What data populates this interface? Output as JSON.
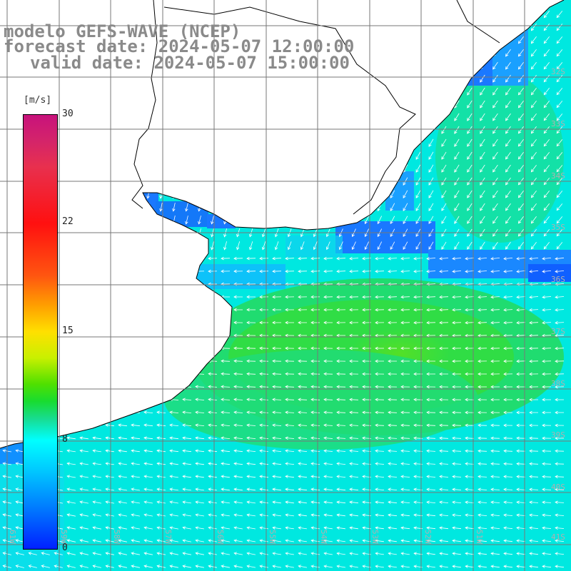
{
  "title": {
    "line1": "modelo GEFS-WAVE (NCEP)",
    "line2": "forecast date: 2024-05-07 12:00:00",
    "line3": "valid date: 2024-05-07 15:00:00"
  },
  "colorbar": {
    "unit": "[m/s]",
    "ticks": [
      "30",
      "22",
      "15",
      "8",
      "0"
    ],
    "colors": [
      "#c8127c",
      "#ff1010",
      "#ffa000",
      "#ffe000",
      "#18dc30",
      "#00ffff",
      "#0080ff",
      "#0020ff"
    ],
    "range": [
      0,
      30
    ]
  },
  "grid": {
    "lon_labels": [
      "61W",
      "59W",
      "58W",
      "57W",
      "56W",
      "55W",
      "54W",
      "53W",
      "52W",
      "51W"
    ],
    "lat_labels": [
      "32S",
      "33S",
      "34S",
      "35S",
      "36S",
      "37S",
      "38S",
      "39S",
      "40S",
      "41S"
    ]
  },
  "field": {
    "variable": "wind speed and direction",
    "land_color": "#ffffff",
    "grid_color": "#777777",
    "arrow_color": "#ffffff"
  }
}
